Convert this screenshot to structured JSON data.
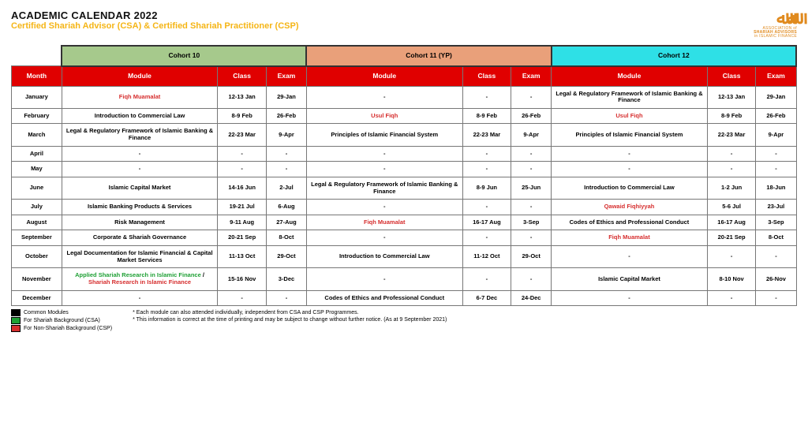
{
  "colors": {
    "title_main": "#111111",
    "title_sub": "#f5b516",
    "logo": "#e08a1e",
    "cohort_bg": [
      "#a6c98c",
      "#e9a07a",
      "#2ee0e6"
    ],
    "header_bg": "#e00000",
    "header_fg": "#ffffff",
    "border": "#777777",
    "legend_black": "#000000",
    "legend_green": "#1fa035",
    "legend_red": "#d62e2e"
  },
  "header": {
    "title": "ACADEMIC CALENDAR 2022",
    "subtitle": "Certified Shariah Advisor (CSA) & Certified Shariah Practitioner (CSP)",
    "logo_top": "ﷲﷲ",
    "logo_line1": "ASSOCIATION of",
    "logo_line2": "SHARIAH ADVISORS",
    "logo_line3": "in ISLAMIC FINANCE"
  },
  "cohorts": [
    "Cohort 10",
    "Cohort 11 (YP)",
    "Cohort 12"
  ],
  "col_headers": {
    "month": "Month",
    "module": "Module",
    "class": "Class",
    "exam": "Exam"
  },
  "months": [
    "January",
    "February",
    "March",
    "April",
    "May",
    "June",
    "July",
    "August",
    "September",
    "October",
    "November",
    "December"
  ],
  "rows": [
    {
      "c10": {
        "module_parts": [
          {
            "t": "Fiqh Muamalat",
            "c": "red"
          }
        ],
        "class": "12-13 Jan",
        "exam": "29-Jan"
      },
      "c11": {
        "module_parts": [
          {
            "t": "-",
            "c": "black"
          }
        ],
        "class": "-",
        "exam": "-"
      },
      "c12": {
        "module_parts": [
          {
            "t": "Legal & Regulatory Framework of Islamic Banking & Finance",
            "c": "black"
          }
        ],
        "class": "12-13 Jan",
        "exam": "29-Jan"
      }
    },
    {
      "c10": {
        "module_parts": [
          {
            "t": "Introduction to Commercial Law",
            "c": "black"
          }
        ],
        "class": "8-9 Feb",
        "exam": "26-Feb"
      },
      "c11": {
        "module_parts": [
          {
            "t": "Usul Fiqh",
            "c": "red"
          }
        ],
        "class": "8-9 Feb",
        "exam": "26-Feb"
      },
      "c12": {
        "module_parts": [
          {
            "t": "Usul Fiqh",
            "c": "red"
          }
        ],
        "class": "8-9 Feb",
        "exam": "26-Feb"
      }
    },
    {
      "c10": {
        "module_parts": [
          {
            "t": "Legal & Regulatory Framework of Islamic Banking & Finance",
            "c": "black"
          }
        ],
        "class": "22-23 Mar",
        "exam": "9-Apr"
      },
      "c11": {
        "module_parts": [
          {
            "t": "Principles of Islamic Financial System",
            "c": "black"
          }
        ],
        "class": "22-23 Mar",
        "exam": "9-Apr"
      },
      "c12": {
        "module_parts": [
          {
            "t": "Principles of Islamic Financial System",
            "c": "black"
          }
        ],
        "class": "22-23 Mar",
        "exam": "9-Apr"
      }
    },
    {
      "c10": {
        "module_parts": [
          {
            "t": "-",
            "c": "black"
          }
        ],
        "class": "-",
        "exam": "-"
      },
      "c11": {
        "module_parts": [
          {
            "t": "-",
            "c": "black"
          }
        ],
        "class": "-",
        "exam": "-"
      },
      "c12": {
        "module_parts": [
          {
            "t": "-",
            "c": "black"
          }
        ],
        "class": "-",
        "exam": "-"
      }
    },
    {
      "c10": {
        "module_parts": [
          {
            "t": "-",
            "c": "black"
          }
        ],
        "class": "-",
        "exam": "-"
      },
      "c11": {
        "module_parts": [
          {
            "t": "-",
            "c": "black"
          }
        ],
        "class": "-",
        "exam": "-"
      },
      "c12": {
        "module_parts": [
          {
            "t": "-",
            "c": "black"
          }
        ],
        "class": "-",
        "exam": "-"
      }
    },
    {
      "c10": {
        "module_parts": [
          {
            "t": "Islamic Capital Market",
            "c": "black"
          }
        ],
        "class": "14-16 Jun",
        "exam": "2-Jul"
      },
      "c11": {
        "module_parts": [
          {
            "t": "Legal & Regulatory Framework of Islamic Banking & Finance",
            "c": "black"
          }
        ],
        "class": "8-9 Jun",
        "exam": "25-Jun"
      },
      "c12": {
        "module_parts": [
          {
            "t": "Introduction to Commercial Law",
            "c": "black"
          }
        ],
        "class": "1-2 Jun",
        "exam": "18-Jun"
      }
    },
    {
      "c10": {
        "module_parts": [
          {
            "t": "Islamic Banking Products & Services",
            "c": "black"
          }
        ],
        "class": "19-21 Jul",
        "exam": "6-Aug"
      },
      "c11": {
        "module_parts": [
          {
            "t": "-",
            "c": "black"
          }
        ],
        "class": "-",
        "exam": "-"
      },
      "c12": {
        "module_parts": [
          {
            "t": "Qawaid Fiqhiyyah",
            "c": "red"
          }
        ],
        "class": "5-6 Jul",
        "exam": "23-Jul"
      }
    },
    {
      "c10": {
        "module_parts": [
          {
            "t": "Risk Management",
            "c": "black"
          }
        ],
        "class": "9-11 Aug",
        "exam": "27-Aug"
      },
      "c11": {
        "module_parts": [
          {
            "t": "Fiqh Muamalat",
            "c": "red"
          }
        ],
        "class": "16-17 Aug",
        "exam": "3-Sep"
      },
      "c12": {
        "module_parts": [
          {
            "t": "Codes of Ethics and Professional Conduct",
            "c": "black"
          }
        ],
        "class": "16-17 Aug",
        "exam": "3-Sep"
      }
    },
    {
      "c10": {
        "module_parts": [
          {
            "t": "Corporate & Shariah Governance",
            "c": "black"
          }
        ],
        "class": "20-21 Sep",
        "exam": "8-Oct"
      },
      "c11": {
        "module_parts": [
          {
            "t": "-",
            "c": "black"
          }
        ],
        "class": "-",
        "exam": "-"
      },
      "c12": {
        "module_parts": [
          {
            "t": "Fiqh Muamalat",
            "c": "red"
          }
        ],
        "class": "20-21 Sep",
        "exam": "8-Oct"
      }
    },
    {
      "c10": {
        "module_parts": [
          {
            "t": "Legal Documentation for Islamic Financial & Capital Market Services",
            "c": "black"
          }
        ],
        "class": "11-13 Oct",
        "exam": "29-Oct"
      },
      "c11": {
        "module_parts": [
          {
            "t": "Introduction to Commercial Law",
            "c": "black"
          }
        ],
        "class": "11-12 Oct",
        "exam": "29-Oct"
      },
      "c12": {
        "module_parts": [
          {
            "t": "-",
            "c": "black"
          }
        ],
        "class": "-",
        "exam": "-"
      }
    },
    {
      "c10": {
        "module_parts": [
          {
            "t": "Applied Shariah Research in Islamic Finance",
            "c": "green"
          },
          {
            "t": " / ",
            "c": "black"
          },
          {
            "t": "Shariah Research in Islamic Finance",
            "c": "red"
          }
        ],
        "class": "15-16 Nov",
        "exam": "3-Dec"
      },
      "c11": {
        "module_parts": [
          {
            "t": "-",
            "c": "black"
          }
        ],
        "class": "-",
        "exam": "-"
      },
      "c12": {
        "module_parts": [
          {
            "t": "Islamic Capital Market",
            "c": "black"
          }
        ],
        "class": "8-10 Nov",
        "exam": "26-Nov"
      }
    },
    {
      "c10": {
        "module_parts": [
          {
            "t": "-",
            "c": "black"
          }
        ],
        "class": "-",
        "exam": "-"
      },
      "c11": {
        "module_parts": [
          {
            "t": "Codes of Ethics and Professional Conduct",
            "c": "black"
          }
        ],
        "class": "6-7 Dec",
        "exam": "24-Dec"
      },
      "c12": {
        "module_parts": [
          {
            "t": "-",
            "c": "black"
          }
        ],
        "class": "-",
        "exam": "-"
      }
    }
  ],
  "legend": [
    {
      "color": "#000000",
      "label": "Common Modules"
    },
    {
      "color": "#1fa035",
      "label": "For Shariah Background (CSA)"
    },
    {
      "color": "#d62e2e",
      "label": "For Non-Shariah Background (CSP)"
    }
  ],
  "notes": [
    "* Each module can also attended individually, independent from CSA and CSP Programmes.",
    "* This information is correct at the time of printing and may be subject to change without further notice. (As at 9 September 2021)"
  ]
}
